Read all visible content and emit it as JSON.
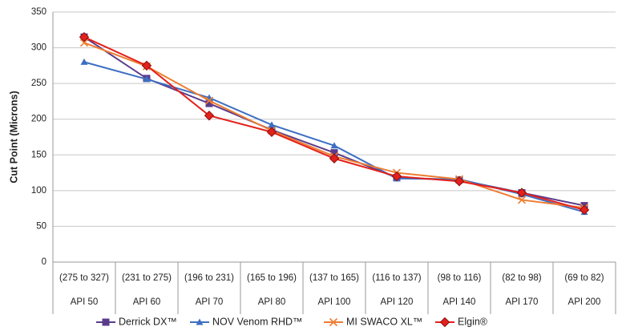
{
  "chart_data": {
    "type": "line",
    "y_label": "Cut Point (Microns)",
    "categories": [
      "API 50",
      "API 60",
      "API 70",
      "API 80",
      "API 100",
      "API 120",
      "API 140",
      "API 170",
      "API 200"
    ],
    "category_ranges": [
      "(275 to 327)",
      "(231 to 275)",
      "(196 to 231)",
      "(165 to 196)",
      "(137 to 165)",
      "(116 to 137)",
      "(98 to 116)",
      "(82 to 98)",
      "(69 to 82)"
    ],
    "ylim": [
      0,
      350
    ],
    "yticks": [
      0,
      50,
      100,
      150,
      200,
      250,
      300,
      350
    ],
    "grid": true,
    "legend": "bottom",
    "series": [
      {
        "name": "Derrick DX™",
        "color": "#5b3c8c",
        "marker": "square",
        "values": [
          315,
          257,
          222,
          185,
          153,
          118,
          115,
          97,
          79
        ]
      },
      {
        "name": "NOV Venom RHD™",
        "color": "#3d6fc2",
        "marker": "triangle",
        "values": [
          280,
          256,
          230,
          192,
          163,
          117,
          116,
          95,
          70
        ]
      },
      {
        "name": "MI SWACO XL™",
        "color": "#ee7d31",
        "marker": "x",
        "values": [
          307,
          274,
          226,
          184,
          148,
          125,
          116,
          87,
          76
        ]
      },
      {
        "name": "Elgin®",
        "color": "#e3211c",
        "marker": "diamond",
        "values": [
          315,
          275,
          205,
          182,
          145,
          120,
          113,
          97,
          73
        ]
      }
    ]
  }
}
